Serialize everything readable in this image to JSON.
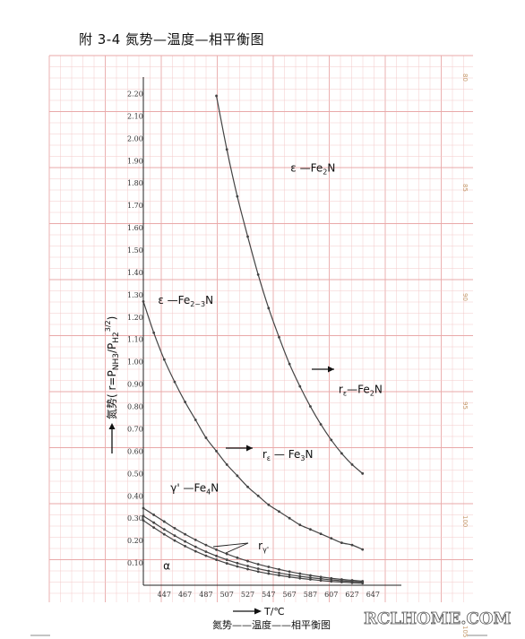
{
  "page_title": "附 3-4  氮势—温度—相平衡图",
  "caption": "氮势——温度——相平衡图",
  "watermark": "RCLHOME.COM",
  "edge_marks": [
    "80",
    "85",
    "90",
    "95",
    "100",
    "105"
  ],
  "colors": {
    "grid_minor": "#f3c9c9",
    "grid_major": "#e9a9a9",
    "curve": "#444444",
    "frame": "#222222"
  },
  "chart_data": {
    "type": "line",
    "xlabel": "T/℃",
    "ylabel": "氮势( r=P",
    "ylabel_sub1": "NH3",
    "ylabel_mid": "/P",
    "ylabel_sub2": "H2",
    "ylabel_sup": "3/2",
    "ylabel_end": ")",
    "xlim": [
      427,
      657
    ],
    "ylim": [
      0,
      2.25
    ],
    "xticks": [
      447,
      467,
      487,
      507,
      527,
      547,
      567,
      587,
      607,
      627,
      647
    ],
    "yticks": [
      "0.10",
      "0.20",
      "0.30",
      "0.40",
      "0.50",
      "0.60",
      "0.70",
      "0.80",
      "0.90",
      "1.00",
      "1.10",
      "1.20",
      "1.30",
      "1.40",
      "1.50",
      "1.60",
      "1.70",
      "1.80",
      "1.90",
      "2.00",
      "2.10",
      "2.20"
    ],
    "series": [
      {
        "x": [
          497,
          507,
          517,
          527,
          537,
          547,
          557,
          567,
          577,
          587,
          597,
          607,
          617,
          627,
          637
        ],
        "y": [
          2.19,
          1.95,
          1.74,
          1.56,
          1.39,
          1.24,
          1.11,
          0.99,
          0.89,
          0.8,
          0.72,
          0.65,
          0.59,
          0.54,
          0.5
        ]
      },
      {
        "x": [
          427,
          437,
          447,
          457,
          467,
          477,
          487,
          497,
          507,
          517,
          527,
          537,
          547,
          557,
          567,
          577,
          587,
          597,
          607,
          617,
          627,
          637
        ],
        "y": [
          1.27,
          1.13,
          1.01,
          0.91,
          0.82,
          0.74,
          0.66,
          0.6,
          0.54,
          0.49,
          0.44,
          0.4,
          0.36,
          0.33,
          0.3,
          0.27,
          0.25,
          0.23,
          0.21,
          0.19,
          0.18,
          0.16
        ]
      },
      {
        "x": [
          427,
          437,
          447,
          457,
          467,
          477,
          487,
          497,
          507,
          517,
          527,
          537,
          547,
          557,
          567,
          577,
          587,
          597,
          607,
          617,
          627,
          637
        ],
        "y": [
          0.345,
          0.315,
          0.285,
          0.255,
          0.228,
          0.203,
          0.18,
          0.159,
          0.14,
          0.123,
          0.108,
          0.094,
          0.082,
          0.071,
          0.061,
          0.052,
          0.044,
          0.037,
          0.031,
          0.026,
          0.022,
          0.018
        ]
      },
      {
        "x": [
          427,
          437,
          447,
          457,
          467,
          477,
          487,
          497,
          507,
          517,
          527,
          537,
          547,
          557,
          567,
          577,
          587,
          597,
          607,
          617,
          627,
          637
        ],
        "y": [
          0.31,
          0.28,
          0.25,
          0.222,
          0.196,
          0.172,
          0.15,
          0.131,
          0.114,
          0.099,
          0.086,
          0.074,
          0.064,
          0.055,
          0.047,
          0.04,
          0.034,
          0.029,
          0.024,
          0.02,
          0.017,
          0.014
        ]
      },
      {
        "x": [
          427,
          437,
          447,
          457,
          467,
          477,
          487,
          497,
          507,
          517,
          527,
          537,
          547,
          557,
          567,
          577,
          587,
          597,
          607,
          617,
          627,
          637
        ],
        "y": [
          0.29,
          0.258,
          0.228,
          0.2,
          0.175,
          0.152,
          0.132,
          0.114,
          0.098,
          0.084,
          0.072,
          0.061,
          0.052,
          0.044,
          0.037,
          0.031,
          0.026,
          0.021,
          0.017,
          0.014,
          0.011,
          0.009
        ]
      }
    ],
    "annotations": {
      "eps_fe2n": {
        "text": "ε —Fe",
        "sub": "2",
        "tail": "N",
        "x": 568,
        "y": 1.85
      },
      "eps_fe23n": {
        "text": "ε —Fe",
        "sub": "2~3",
        "tail": "N",
        "x": 441,
        "y": 1.26
      },
      "r_eps_fe2n": {
        "text": "r",
        "sub": "ε",
        "tail": "—Fe",
        "sub2": "2",
        "tail2": "N",
        "x": 614,
        "y": 0.86
      },
      "r_eps_fe3n": {
        "text": "r",
        "sub": "ε",
        "tail": " — Fe",
        "sub2": "3",
        "tail2": "N",
        "x": 541,
        "y": 0.57
      },
      "gamma_fe4n": {
        "text": "γ' —Fe",
        "sub": "4",
        "tail": "N",
        "x": 453,
        "y": 0.42
      },
      "r_gamma": {
        "text": "r",
        "sub": "γ'",
        "x": 537,
        "y": 0.16
      },
      "alpha": {
        "text": "α",
        "x": 446,
        "y": 0.07
      }
    }
  }
}
